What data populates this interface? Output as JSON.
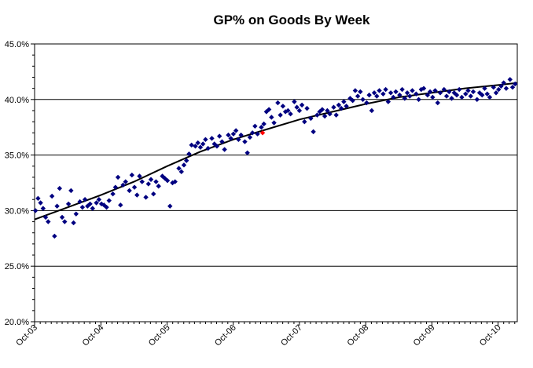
{
  "chart_data": {
    "type": "scatter",
    "title": "GP% on Goods By Week",
    "xlabel": "",
    "ylabel": "",
    "ylim": [
      20.0,
      45.0
    ],
    "y_ticks": [
      "20.0%",
      "25.0%",
      "30.0%",
      "35.0%",
      "40.0%",
      "45.0%"
    ],
    "y_tick_values": [
      20,
      25,
      30,
      35,
      40,
      45
    ],
    "x_ticks": [
      "Oct-03",
      "Oct-04",
      "Oct-05",
      "Oct-06",
      "Oct-07",
      "Oct-08",
      "Oct-09",
      "Oct-10"
    ],
    "x_tick_dates": [
      "2003-10-01",
      "2004-10-01",
      "2005-10-01",
      "2006-10-01",
      "2007-10-01",
      "2008-10-01",
      "2009-10-01",
      "2010-10-01"
    ],
    "xlim": [
      "2003-10-01",
      "2011-01-15"
    ],
    "grid": "horizontal major gridlines",
    "legend": "none",
    "marker": "diamond",
    "colors": {
      "points": "#000080",
      "highlight_point": "#ff0000",
      "trendline": "#000000",
      "grid": "#000000"
    },
    "series": [
      {
        "points": [
          [
            "2003-10-06",
            30.0
          ],
          [
            "2003-10-20",
            31.1
          ],
          [
            "2003-11-03",
            30.7
          ],
          [
            "2003-11-17",
            30.2
          ],
          [
            "2003-12-01",
            29.4
          ],
          [
            "2003-12-15",
            29.0
          ],
          [
            "2004-01-05",
            31.3
          ],
          [
            "2004-01-19",
            27.7
          ],
          [
            "2004-02-02",
            30.4
          ],
          [
            "2004-02-16",
            32.0
          ],
          [
            "2004-03-01",
            29.4
          ],
          [
            "2004-03-15",
            29.0
          ],
          [
            "2004-04-05",
            30.6
          ],
          [
            "2004-04-19",
            31.8
          ],
          [
            "2004-05-03",
            28.9
          ],
          [
            "2004-05-17",
            29.7
          ],
          [
            "2004-06-07",
            30.8
          ],
          [
            "2004-06-21",
            30.3
          ],
          [
            "2004-07-05",
            31.0
          ],
          [
            "2004-07-19",
            30.4
          ],
          [
            "2004-08-02",
            30.6
          ],
          [
            "2004-08-16",
            30.2
          ],
          [
            "2004-09-06",
            30.7
          ],
          [
            "2004-09-20",
            31.0
          ],
          [
            "2004-10-04",
            30.6
          ],
          [
            "2004-10-18",
            30.5
          ],
          [
            "2004-11-01",
            30.3
          ],
          [
            "2004-11-15",
            30.9
          ],
          [
            "2004-12-06",
            31.5
          ],
          [
            "2004-12-20",
            32.1
          ],
          [
            "2005-01-03",
            33.0
          ],
          [
            "2005-01-17",
            30.5
          ],
          [
            "2005-01-31",
            32.3
          ],
          [
            "2005-02-14",
            32.6
          ],
          [
            "2005-03-07",
            31.8
          ],
          [
            "2005-03-21",
            33.2
          ],
          [
            "2005-04-04",
            32.1
          ],
          [
            "2005-04-18",
            31.4
          ],
          [
            "2005-05-02",
            33.1
          ],
          [
            "2005-05-16",
            32.6
          ],
          [
            "2005-06-06",
            31.2
          ],
          [
            "2005-06-20",
            32.4
          ],
          [
            "2005-07-04",
            32.8
          ],
          [
            "2005-07-18",
            31.5
          ],
          [
            "2005-08-01",
            32.6
          ],
          [
            "2005-08-15",
            32.2
          ],
          [
            "2005-09-05",
            33.1
          ],
          [
            "2005-09-19",
            32.9
          ],
          [
            "2005-10-03",
            32.7
          ],
          [
            "2005-10-17",
            30.4
          ],
          [
            "2005-10-31",
            32.5
          ],
          [
            "2005-11-14",
            32.6
          ],
          [
            "2005-12-05",
            33.8
          ],
          [
            "2005-12-19",
            33.5
          ],
          [
            "2006-01-02",
            34.1
          ],
          [
            "2006-01-16",
            34.5
          ],
          [
            "2006-01-30",
            35.1
          ],
          [
            "2006-02-13",
            35.9
          ],
          [
            "2006-03-06",
            35.8
          ],
          [
            "2006-03-20",
            36.1
          ],
          [
            "2006-04-03",
            35.7
          ],
          [
            "2006-04-17",
            36.0
          ],
          [
            "2006-05-01",
            36.4
          ],
          [
            "2006-05-15",
            35.6
          ],
          [
            "2006-06-05",
            36.5
          ],
          [
            "2006-06-19",
            36.0
          ],
          [
            "2006-07-03",
            35.8
          ],
          [
            "2006-07-17",
            36.7
          ],
          [
            "2006-07-31",
            36.2
          ],
          [
            "2006-08-14",
            35.5
          ],
          [
            "2006-09-04",
            36.8
          ],
          [
            "2006-09-18",
            36.5
          ],
          [
            "2006-10-02",
            36.9
          ],
          [
            "2006-10-16",
            37.2
          ],
          [
            "2006-10-30",
            36.4
          ],
          [
            "2006-11-13",
            36.8
          ],
          [
            "2006-12-04",
            36.2
          ],
          [
            "2006-12-18",
            35.2
          ],
          [
            "2007-01-01",
            36.6
          ],
          [
            "2007-01-15",
            37.0
          ],
          [
            "2007-01-29",
            37.6
          ],
          [
            "2007-02-12",
            36.9
          ],
          [
            "2007-03-05",
            37.5
          ],
          [
            "2007-03-19",
            37.8
          ],
          [
            "2007-04-02",
            38.9
          ],
          [
            "2007-04-16",
            39.1
          ],
          [
            "2007-04-30",
            38.4
          ],
          [
            "2007-05-14",
            37.9
          ],
          [
            "2007-06-04",
            39.7
          ],
          [
            "2007-06-18",
            38.6
          ],
          [
            "2007-07-02",
            39.4
          ],
          [
            "2007-07-16",
            38.9
          ],
          [
            "2007-07-30",
            39.0
          ],
          [
            "2007-08-13",
            38.7
          ],
          [
            "2007-09-03",
            39.8
          ],
          [
            "2007-09-17",
            39.3
          ],
          [
            "2007-10-01",
            39.0
          ],
          [
            "2007-10-15",
            39.5
          ],
          [
            "2007-10-29",
            38.0
          ],
          [
            "2007-11-12",
            39.2
          ],
          [
            "2007-12-03",
            38.3
          ],
          [
            "2007-12-17",
            37.1
          ],
          [
            "2008-01-07",
            38.6
          ],
          [
            "2008-01-21",
            38.9
          ],
          [
            "2008-02-04",
            39.1
          ],
          [
            "2008-02-18",
            38.5
          ],
          [
            "2008-03-03",
            39.0
          ],
          [
            "2008-03-17",
            38.7
          ],
          [
            "2008-04-07",
            39.3
          ],
          [
            "2008-04-21",
            38.6
          ],
          [
            "2008-05-05",
            39.5
          ],
          [
            "2008-05-19",
            39.2
          ],
          [
            "2008-06-02",
            39.8
          ],
          [
            "2008-06-16",
            39.4
          ],
          [
            "2008-07-07",
            40.1
          ],
          [
            "2008-07-21",
            39.9
          ],
          [
            "2008-08-04",
            40.8
          ],
          [
            "2008-08-18",
            40.3
          ],
          [
            "2008-09-01",
            40.7
          ],
          [
            "2008-09-15",
            40.0
          ],
          [
            "2008-10-06",
            39.7
          ],
          [
            "2008-10-20",
            40.4
          ],
          [
            "2008-11-03",
            39.0
          ],
          [
            "2008-11-17",
            40.6
          ],
          [
            "2008-12-01",
            40.3
          ],
          [
            "2008-12-15",
            40.8
          ],
          [
            "2009-01-05",
            40.5
          ],
          [
            "2009-01-19",
            40.9
          ],
          [
            "2009-02-02",
            39.8
          ],
          [
            "2009-02-16",
            40.6
          ],
          [
            "2009-03-02",
            40.2
          ],
          [
            "2009-03-16",
            40.7
          ],
          [
            "2009-04-06",
            40.4
          ],
          [
            "2009-04-20",
            40.9
          ],
          [
            "2009-05-04",
            40.1
          ],
          [
            "2009-05-18",
            40.6
          ],
          [
            "2009-06-01",
            40.3
          ],
          [
            "2009-06-15",
            40.8
          ],
          [
            "2009-07-06",
            40.5
          ],
          [
            "2009-07-20",
            40.0
          ],
          [
            "2009-08-03",
            40.9
          ],
          [
            "2009-08-17",
            41.0
          ],
          [
            "2009-09-07",
            40.4
          ],
          [
            "2009-09-21",
            40.7
          ],
          [
            "2009-10-05",
            40.2
          ],
          [
            "2009-10-19",
            40.8
          ],
          [
            "2009-11-02",
            39.7
          ],
          [
            "2009-11-16",
            40.6
          ],
          [
            "2009-12-07",
            40.9
          ],
          [
            "2009-12-21",
            40.3
          ],
          [
            "2010-01-04",
            40.7
          ],
          [
            "2010-01-18",
            40.1
          ],
          [
            "2010-02-01",
            40.6
          ],
          [
            "2010-02-15",
            40.4
          ],
          [
            "2010-03-01",
            40.9
          ],
          [
            "2010-03-15",
            40.2
          ],
          [
            "2010-04-05",
            40.5
          ],
          [
            "2010-04-19",
            40.8
          ],
          [
            "2010-05-03",
            40.3
          ],
          [
            "2010-05-17",
            40.7
          ],
          [
            "2010-06-07",
            40.0
          ],
          [
            "2010-06-21",
            40.6
          ],
          [
            "2010-07-05",
            40.4
          ],
          [
            "2010-07-19",
            41.0
          ],
          [
            "2010-08-02",
            40.5
          ],
          [
            "2010-08-16",
            40.2
          ],
          [
            "2010-09-06",
            41.1
          ],
          [
            "2010-09-20",
            40.6
          ],
          [
            "2010-10-04",
            40.9
          ],
          [
            "2010-10-18",
            41.2
          ],
          [
            "2010-11-01",
            41.5
          ],
          [
            "2010-11-15",
            41.0
          ],
          [
            "2010-12-06",
            41.8
          ],
          [
            "2010-12-20",
            41.1
          ],
          [
            "2011-01-03",
            41.4
          ]
        ]
      }
    ],
    "highlight_points": [
      [
        "2007-03-12",
        37.0
      ]
    ],
    "trendline": {
      "points": [
        [
          "2003-10-01",
          29.2
        ],
        [
          "2004-04-01",
          30.3
        ],
        [
          "2004-10-01",
          31.4
        ],
        [
          "2005-04-01",
          32.6
        ],
        [
          "2005-10-01",
          34.0
        ],
        [
          "2006-04-01",
          35.3
        ],
        [
          "2006-10-01",
          36.4
        ],
        [
          "2007-04-01",
          37.3
        ],
        [
          "2007-10-01",
          38.2
        ],
        [
          "2008-04-01",
          38.9
        ],
        [
          "2008-10-01",
          39.6
        ],
        [
          "2009-04-01",
          40.2
        ],
        [
          "2009-10-01",
          40.6
        ],
        [
          "2010-04-01",
          41.0
        ],
        [
          "2010-10-01",
          41.3
        ],
        [
          "2011-01-15",
          41.5
        ]
      ]
    }
  }
}
